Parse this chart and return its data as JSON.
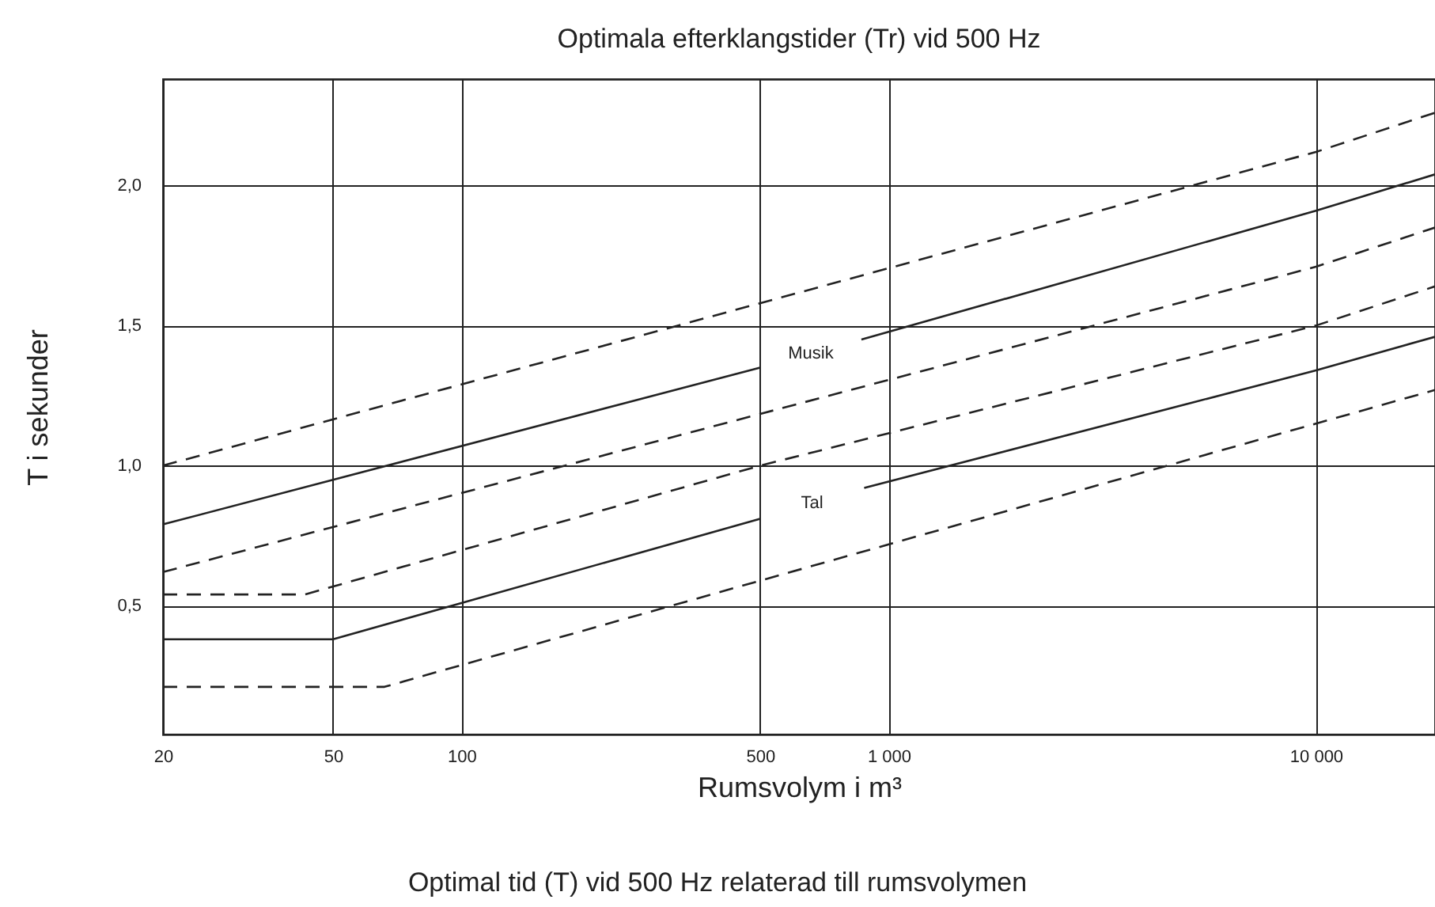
{
  "chart_data": {
    "type": "line",
    "title": "Optimala efterklangstider (Tr) vid 500 Hz",
    "xlabel": "Rumsvolym i m³",
    "ylabel": "T i sekunder",
    "annotations": [
      "Optimal tid (T) vid 500 Hz relaterad till rumsvolymen"
    ],
    "log": "x",
    "grid": true,
    "marker": "none",
    "xlim": [
      20,
      19000
    ],
    "xticks": [
      20,
      50,
      100,
      500,
      {
        "value": 1000,
        "label": "1 000"
      },
      {
        "value": 10000,
        "label": "10 000"
      }
    ],
    "ylim": [
      0.04,
      2.38
    ],
    "yticks": [
      {
        "value": 0.5,
        "label": "0,5"
      },
      {
        "value": 1.0,
        "label": "1,0"
      },
      {
        "value": 1.5,
        "label": "1,5"
      },
      {
        "value": 2.0,
        "label": "2,0"
      }
    ],
    "series": [
      {
        "color": "#222222",
        "line_style": "dashed",
        "x": [
          20,
          10000,
          19000
        ],
        "values": [
          1.0,
          2.12,
          2.26
        ]
      },
      {
        "name": "Musik",
        "color": "#222222",
        "line_style": "solid",
        "x": [
          20,
          500,
          660,
          863,
          10000,
          19000
        ],
        "values": [
          0.79,
          1.35,
          null,
          1.45,
          1.91,
          2.04
        ]
      },
      {
        "color": "#222222",
        "line_style": "dashed",
        "x": [
          20,
          10000,
          19000
        ],
        "values": [
          0.62,
          1.71,
          1.85
        ]
      },
      {
        "color": "#222222",
        "line_style": "dashed",
        "x": [
          20,
          43,
          500,
          10000,
          19000
        ],
        "values": [
          0.54,
          0.54,
          1.0,
          1.5,
          1.64
        ]
      },
      {
        "name": "Tal",
        "color": "#222222",
        "line_style": "solid",
        "x": [
          20,
          50,
          500,
          660,
          876,
          10000,
          19000
        ],
        "values": [
          0.38,
          0.38,
          0.81,
          null,
          0.92,
          1.34,
          1.46
        ]
      },
      {
        "color": "#222222",
        "line_style": "dashed",
        "x": [
          20,
          66,
          10000,
          19000
        ],
        "values": [
          0.21,
          0.21,
          1.15,
          1.27
        ]
      }
    ]
  }
}
